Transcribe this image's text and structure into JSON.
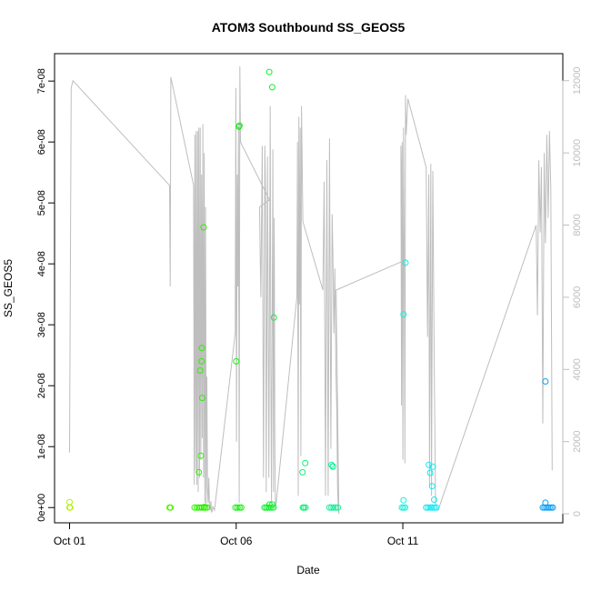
{
  "chart_data": {
    "type": "scatter",
    "title": "ATOM3 Southbound SS_GEOS5",
    "xlabel": "Date",
    "ylabel": "SS_GEOS5",
    "x_ticks": [
      "Oct 01",
      "Oct 06",
      "Oct 11"
    ],
    "x_tick_days": [
      1,
      6,
      11
    ],
    "xlim_days": [
      0.55,
      15.8
    ],
    "y_ticks": [
      "0e+00",
      "1e-08",
      "2e-08",
      "3e-08",
      "4e-08",
      "5e-08",
      "6e-08",
      "7e-08"
    ],
    "y_tick_values": [
      0,
      1e-08,
      2e-08,
      3e-08,
      4e-08,
      5e-08,
      6e-08,
      7e-08
    ],
    "ylim": [
      -2.5e-09,
      7.45e-08
    ],
    "y2_ticks": [
      "0",
      "2000",
      "4000",
      "6000",
      "8000",
      "10000",
      "12000"
    ],
    "y2_tick_values": [
      0,
      2000,
      4000,
      6000,
      8000,
      10000,
      12000
    ],
    "y2lim": [
      -250,
      12750
    ],
    "right_axis_color": "#bebebe",
    "line_color": "#bebebe",
    "grid": false,
    "legend": "none",
    "points": [
      {
        "x": 1.0,
        "y": 0,
        "c": "#b5f000"
      },
      {
        "x": 1.02,
        "y": 0,
        "c": "#b5f000"
      },
      {
        "x": 1.0,
        "y": 9e-10,
        "c": "#b5f000"
      },
      {
        "x": 4.0,
        "y": 0,
        "c": "#54f000"
      },
      {
        "x": 4.03,
        "y": 0,
        "c": "#54f000"
      },
      {
        "x": 4.75,
        "y": 0,
        "c": "#2cf000"
      },
      {
        "x": 4.82,
        "y": 0,
        "c": "#2cf000"
      },
      {
        "x": 4.88,
        "y": 0,
        "c": "#2cf000"
      },
      {
        "x": 4.93,
        "y": 0,
        "c": "#2cf000"
      },
      {
        "x": 4.98,
        "y": 0,
        "c": "#2cf000"
      },
      {
        "x": 5.03,
        "y": 0,
        "c": "#2cf000"
      },
      {
        "x": 5.08,
        "y": 0,
        "c": "#2cf000"
      },
      {
        "x": 5.13,
        "y": 0,
        "c": "#2cf000"
      },
      {
        "x": 4.88,
        "y": 5.8e-09,
        "c": "#2cf000"
      },
      {
        "x": 4.94,
        "y": 8.5e-09,
        "c": "#2cf000"
      },
      {
        "x": 4.92,
        "y": 2.25e-08,
        "c": "#2cf000"
      },
      {
        "x": 4.96,
        "y": 2.4e-08,
        "c": "#2cf000"
      },
      {
        "x": 4.97,
        "y": 2.62e-08,
        "c": "#2cf000"
      },
      {
        "x": 4.98,
        "y": 1.8e-08,
        "c": "#2cf000"
      },
      {
        "x": 5.02,
        "y": 4.6e-08,
        "c": "#2cf000"
      },
      {
        "x": 5.04,
        "y": 1e-10,
        "c": "#2cf000"
      },
      {
        "x": 5.98,
        "y": 0,
        "c": "#14f010"
      },
      {
        "x": 6.04,
        "y": 0,
        "c": "#14f010"
      },
      {
        "x": 6.1,
        "y": 0,
        "c": "#14f010"
      },
      {
        "x": 6.15,
        "y": 0,
        "c": "#14f010"
      },
      {
        "x": 6.0,
        "y": 2.4e-08,
        "c": "#14f010"
      },
      {
        "x": 6.08,
        "y": 6.25e-08,
        "c": "#14f010"
      },
      {
        "x": 6.1,
        "y": 6.27e-08,
        "c": "#14f010"
      },
      {
        "x": 6.85,
        "y": 0,
        "c": "#10f030"
      },
      {
        "x": 6.9,
        "y": 0,
        "c": "#10f030"
      },
      {
        "x": 6.95,
        "y": 0,
        "c": "#10f030"
      },
      {
        "x": 7.0,
        "y": 0,
        "c": "#10f030"
      },
      {
        "x": 7.05,
        "y": 0,
        "c": "#10f030"
      },
      {
        "x": 7.12,
        "y": 0,
        "c": "#10f030"
      },
      {
        "x": 7.0,
        "y": 5e-10,
        "c": "#10f030"
      },
      {
        "x": 7.08,
        "y": 5e-10,
        "c": "#10f030"
      },
      {
        "x": 6.99,
        "y": 7.15e-08,
        "c": "#10f030"
      },
      {
        "x": 7.08,
        "y": 6.9e-08,
        "c": "#10f030"
      },
      {
        "x": 7.13,
        "y": 3.12e-08,
        "c": "#10f030"
      },
      {
        "x": 8.0,
        "y": 0,
        "c": "#10f070"
      },
      {
        "x": 8.03,
        "y": 0,
        "c": "#10f070"
      },
      {
        "x": 8.08,
        "y": 0,
        "c": "#10f070"
      },
      {
        "x": 7.99,
        "y": 5.8e-09,
        "c": "#10f070"
      },
      {
        "x": 8.07,
        "y": 7.3e-09,
        "c": "#10f070"
      },
      {
        "x": 8.8,
        "y": 0,
        "c": "#10f098"
      },
      {
        "x": 8.86,
        "y": 0,
        "c": "#10f098"
      },
      {
        "x": 8.92,
        "y": 0,
        "c": "#10f098"
      },
      {
        "x": 8.98,
        "y": 0,
        "c": "#10f098"
      },
      {
        "x": 9.05,
        "y": 0,
        "c": "#10f098"
      },
      {
        "x": 8.86,
        "y": 7e-09,
        "c": "#10f098"
      },
      {
        "x": 8.9,
        "y": 6.7e-09,
        "c": "#10f098"
      },
      {
        "x": 8.9,
        "y": 6.8e-09,
        "c": "#10f098"
      },
      {
        "x": 10.97,
        "y": 0,
        "c": "#10f0e0"
      },
      {
        "x": 11.02,
        "y": 0,
        "c": "#10f0e0"
      },
      {
        "x": 11.07,
        "y": 0,
        "c": "#10f0e0"
      },
      {
        "x": 11.02,
        "y": 1.2e-09,
        "c": "#10f0e0"
      },
      {
        "x": 11.02,
        "y": 3.17e-08,
        "c": "#10f0e0"
      },
      {
        "x": 11.08,
        "y": 4.02e-08,
        "c": "#10f0e0"
      },
      {
        "x": 11.7,
        "y": 0,
        "c": "#10e8f0"
      },
      {
        "x": 11.76,
        "y": 0,
        "c": "#10e8f0"
      },
      {
        "x": 11.82,
        "y": 0,
        "c": "#10e8f0"
      },
      {
        "x": 11.88,
        "y": 0,
        "c": "#10e8f0"
      },
      {
        "x": 11.94,
        "y": 0,
        "c": "#10e8f0"
      },
      {
        "x": 12.0,
        "y": 0,
        "c": "#10e8f0"
      },
      {
        "x": 11.78,
        "y": 7e-09,
        "c": "#10e8f0"
      },
      {
        "x": 11.82,
        "y": 5.7e-09,
        "c": "#10e8f0"
      },
      {
        "x": 11.9,
        "y": 6.7e-09,
        "c": "#10e8f0"
      },
      {
        "x": 11.88,
        "y": 3.5e-09,
        "c": "#10e8f0"
      },
      {
        "x": 11.94,
        "y": 1.3e-09,
        "c": "#10e8f0"
      },
      {
        "x": 15.2,
        "y": 0,
        "c": "#10a0f0"
      },
      {
        "x": 15.25,
        "y": 0,
        "c": "#10a0f0"
      },
      {
        "x": 15.3,
        "y": 0,
        "c": "#10a0f0"
      },
      {
        "x": 15.35,
        "y": 0,
        "c": "#10a0f0"
      },
      {
        "x": 15.4,
        "y": 0,
        "c": "#10a0f0"
      },
      {
        "x": 15.45,
        "y": 0,
        "c": "#10a0f0"
      },
      {
        "x": 15.5,
        "y": 0,
        "c": "#10a0f0"
      },
      {
        "x": 15.28,
        "y": 8e-10,
        "c": "#10a0f0"
      },
      {
        "x": 15.28,
        "y": 2.07e-08,
        "c": "#10a0f0"
      }
    ],
    "altitude_line": [
      [
        1.0,
        1700
      ],
      [
        1.05,
        11800
      ],
      [
        1.1,
        12000
      ],
      [
        4.0,
        9100
      ],
      [
        4.02,
        6300
      ],
      [
        4.04,
        12100
      ],
      [
        4.72,
        9100
      ],
      [
        4.74,
        800
      ],
      [
        4.76,
        10500
      ],
      [
        4.78,
        1200
      ],
      [
        4.8,
        10600
      ],
      [
        4.82,
        800
      ],
      [
        4.84,
        10600
      ],
      [
        4.86,
        600
      ],
      [
        4.88,
        10700
      ],
      [
        4.9,
        1000
      ],
      [
        4.92,
        10700
      ],
      [
        4.94,
        1500
      ],
      [
        4.96,
        9400
      ],
      [
        4.98,
        2100
      ],
      [
        5.0,
        10800
      ],
      [
        5.02,
        1000
      ],
      [
        5.04,
        10000
      ],
      [
        5.06,
        300
      ],
      [
        5.08,
        8500
      ],
      [
        5.1,
        200
      ],
      [
        5.12,
        3800
      ],
      [
        5.14,
        700
      ],
      [
        5.16,
        300
      ],
      [
        5.18,
        1000
      ],
      [
        5.2,
        200
      ],
      [
        5.22,
        100
      ],
      [
        5.24,
        350
      ],
      [
        5.26,
        50
      ],
      [
        5.28,
        80
      ],
      [
        5.3,
        200
      ],
      [
        5.35,
        100
      ],
      [
        5.97,
        5000
      ],
      [
        5.99,
        11800
      ],
      [
        6.01,
        2000
      ],
      [
        6.03,
        9400
      ],
      [
        6.05,
        6300
      ],
      [
        6.07,
        10800
      ],
      [
        6.09,
        300
      ],
      [
        6.11,
        12400
      ],
      [
        6.13,
        10300
      ],
      [
        7.0,
        8700
      ],
      [
        6.7,
        8500
      ],
      [
        6.74,
        6000
      ],
      [
        6.78,
        10200
      ],
      [
        6.82,
        1000
      ],
      [
        6.86,
        10200
      ],
      [
        6.88,
        9000
      ],
      [
        6.9,
        600
      ],
      [
        6.94,
        9900
      ],
      [
        6.98,
        1000
      ],
      [
        7.02,
        11300
      ],
      [
        7.04,
        4000
      ],
      [
        7.06,
        300
      ],
      [
        7.1,
        10100
      ],
      [
        7.12,
        600
      ],
      [
        7.14,
        8200
      ],
      [
        7.16,
        1800
      ],
      [
        7.18,
        100
      ],
      [
        7.82,
        6000
      ],
      [
        7.84,
        10300
      ],
      [
        7.86,
        500
      ],
      [
        7.88,
        11000
      ],
      [
        7.9,
        5800
      ],
      [
        7.92,
        10700
      ],
      [
        7.94,
        1600
      ],
      [
        7.96,
        11300
      ],
      [
        8.0,
        8100
      ],
      [
        8.6,
        6200
      ],
      [
        8.64,
        9200
      ],
      [
        8.68,
        500
      ],
      [
        8.72,
        9800
      ],
      [
        8.76,
        500
      ],
      [
        8.8,
        10400
      ],
      [
        8.84,
        1800
      ],
      [
        8.88,
        8300
      ],
      [
        8.9,
        7200
      ],
      [
        8.93,
        5000
      ],
      [
        8.96,
        6800
      ],
      [
        8.99,
        4000
      ],
      [
        9.02,
        2800
      ],
      [
        9.04,
        800
      ],
      [
        9.06,
        250
      ],
      [
        9.08,
        0
      ],
      [
        9.0,
        6200
      ],
      [
        11.0,
        7000
      ],
      [
        10.94,
        10200
      ],
      [
        10.96,
        3000
      ],
      [
        10.98,
        10300
      ],
      [
        11.0,
        1500
      ],
      [
        11.02,
        10700
      ],
      [
        11.04,
        7600
      ],
      [
        11.06,
        1400
      ],
      [
        11.08,
        11600
      ],
      [
        11.1,
        10500
      ],
      [
        11.15,
        11500
      ],
      [
        11.7,
        9600
      ],
      [
        11.74,
        4900
      ],
      [
        11.78,
        9400
      ],
      [
        11.8,
        800
      ],
      [
        11.84,
        9700
      ],
      [
        11.86,
        500
      ],
      [
        11.9,
        9500
      ],
      [
        11.94,
        4400
      ],
      [
        11.98,
        300
      ],
      [
        12.02,
        200
      ],
      [
        12.06,
        100
      ],
      [
        15.0,
        8000
      ],
      [
        15.04,
        5500
      ],
      [
        15.08,
        9800
      ],
      [
        15.12,
        7800
      ],
      [
        15.16,
        9600
      ],
      [
        15.2,
        2500
      ],
      [
        15.24,
        10000
      ],
      [
        15.28,
        7500
      ],
      [
        15.32,
        10500
      ],
      [
        15.36,
        8200
      ],
      [
        15.4,
        10600
      ],
      [
        15.44,
        9000
      ],
      [
        15.48,
        1200
      ]
    ]
  }
}
